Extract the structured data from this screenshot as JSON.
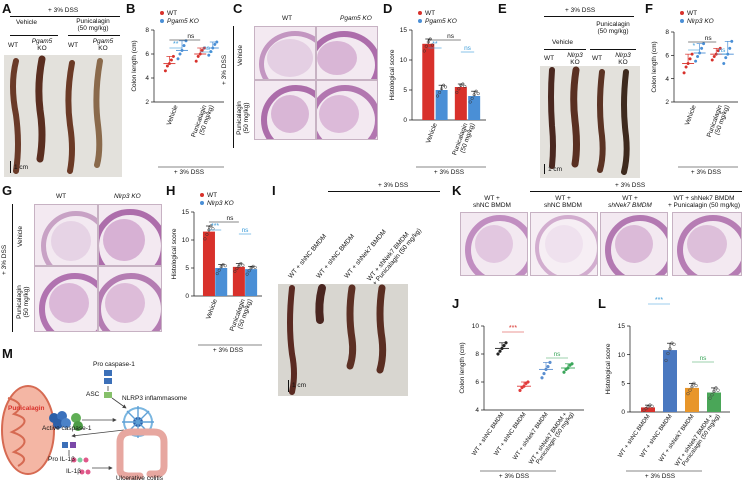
{
  "panels": {
    "A": {
      "letter": "A",
      "treatment_header": "+ 3% DSS",
      "group_vehicle": "Vehicle",
      "group_punicalagin_l1": "Punicalagin",
      "group_punicalagin_l2": "(50 mg/kg)",
      "col_wt1": "WT",
      "col_ko1_l1": "Pgam5",
      "col_ko1_l2": "KO",
      "col_wt2": "WT",
      "col_ko2_l1": "Pgam5",
      "col_ko2_l2": "KO",
      "scale": "1 cm"
    },
    "B": {
      "letter": "B",
      "legend_wt": "WT",
      "legend_ko": "Pgam5 KO",
      "sig1": "**",
      "sig2": "ns",
      "sig3": "ns",
      "xcat1": "Vehicle",
      "xcat2_l1": "Punicalagin",
      "xcat2_l2": "(50 mg/kg)",
      "footer": "+ 3% DSS"
    },
    "C": {
      "letter": "C",
      "col_wt": "WT",
      "col_ko": "Pgam5 KO",
      "side_label": "+ 3% DSS",
      "row_vehicle": "Vehicle",
      "row_punicalagin_l1": "Punicalagin",
      "row_punicalagin_l2": "(50 mg/kg)"
    },
    "D": {
      "letter": "D",
      "legend_wt": "WT",
      "legend_ko": "Pgam5 KO",
      "sig1": "**",
      "sig2": "ns",
      "sig3": "ns",
      "xcat1": "Vehicle",
      "xcat2_l1": "Punicalagin",
      "xcat2_l2": "(50 mg/kg)",
      "footer": "+ 3% DSS"
    },
    "E": {
      "letter": "E",
      "treatment_header": "+ 3% DSS",
      "group_vehicle": "Vehicle",
      "group_punicalagin_l1": "Punicalagin",
      "group_punicalagin_l2": "(50 mg/kg)",
      "col_wt1": "WT",
      "col_ko1_l1": "Nlrp3",
      "col_ko1_l2": "KO",
      "col_wt2": "WT",
      "col_ko2_l1": "Nlrp3",
      "col_ko2_l2": "KO",
      "scale": "1 cm"
    },
    "F": {
      "letter": "F",
      "legend_wt": "WT",
      "legend_ko": "Nlrp3 KO",
      "sig1": "*",
      "sig2": "ns",
      "sig3": "ns",
      "xcat1": "Vehicle",
      "xcat2_l1": "Punicalagin",
      "xcat2_l2": "(50 mg/kg)",
      "footer": "+ 3% DSS"
    },
    "G": {
      "letter": "G",
      "col_wt": "WT",
      "col_ko": "Nlrp3 KO",
      "side_label": "+ 3% DSS",
      "row_vehicle": "Vehicle",
      "row_punicalagin_l1": "Punicalagin",
      "row_punicalagin_l2": "(50 mg/kg)"
    },
    "H": {
      "letter": "H",
      "legend_wt": "WT",
      "legend_ko": "Nlrp3 KO",
      "sig1": "***",
      "sig2": "ns",
      "sig3": "ns",
      "xcat1": "Vehicle",
      "xcat2_l1": "Punicalagin",
      "xcat2_l2": "(50 mg/kg)",
      "footer": "+ 3% DSS"
    },
    "I": {
      "letter": "I",
      "treatment_header": "+ 3% DSS",
      "col1": "WT + shNC BMDM",
      "col2": "WT + shNC BMDM",
      "col3": "WT + shNek7 BMDM",
      "col4_l1": "WT + shNek7 BMDM",
      "col4_l2": "+ Punicalagin (50 mg/kg)",
      "scale": "1 cm"
    },
    "K": {
      "letter": "K",
      "treatment_header": "+ 3% DSS",
      "col1_l1": "WT +",
      "col1_l2": "shNC BMDM",
      "col2_l1": "WT +",
      "col2_l2": "shNC BMDM",
      "col3_l1": "WT +",
      "col3_l2": "shNek7 BMDM",
      "col4_l1": "WT + shNek7 BMDM",
      "col4_l2": "+ Punicalagin (50 mg/kg)"
    },
    "J": {
      "letter": "J",
      "sig1": "***",
      "sig2": "ns",
      "footer": "+ 3% DSS",
      "xcat1": "WT + shNC BMDM",
      "xcat2": "WT + shNC BMDM",
      "xcat3": "WT + shNek7 BMDM",
      "xcat4_l1": "WT + shNek7 BMDM +",
      "xcat4_l2": "Punicalagin (50 mg/kg)"
    },
    "L": {
      "letter": "L",
      "sig1": "***",
      "sig2": "ns",
      "footer": "+ 3% DSS",
      "xcat1": "WT + shNC BMDM",
      "xcat2": "WT + shNC BMDM",
      "xcat3": "WT + shNek7 BMDM",
      "xcat4_l1": "WT + shNek7 BMDM +",
      "xcat4_l2": "Punicalagin (50 mg/kg)"
    },
    "M": {
      "letter": "M",
      "punicalagin": "Punicalagin",
      "pro_caspase": "Pro caspase-1",
      "asc": "ASC",
      "nlrp3": "NLRP3 inflammasome",
      "active_caspase": "Active caspase-1",
      "pro_il": "Pro IL-1β",
      "il": "IL-1β",
      "uc": "Ulcerative colitis"
    }
  },
  "colors": {
    "wt": "#d8312b",
    "ko": "#4a8fd6",
    "ns": "#3a9bd9",
    "sig_red": "#d8312b",
    "sig_blue": "#3a9bd9",
    "bar_red": "#d8312b",
    "bar_blue": "#4a78c0",
    "bar_orange": "#e8962a",
    "bar_green": "#4aa658",
    "dot_black": "#222222",
    "dot_red": "#e23b3b",
    "dot_blue": "#5b8fd0",
    "dot_green": "#3aa65a"
  },
  "chart_data": [
    {
      "panel": "B",
      "type": "scatter",
      "ylabel": "Colon length (cm)",
      "ylim": [
        2,
        8
      ],
      "yticks": [
        "2",
        "4",
        "6",
        "8"
      ],
      "groups": [
        {
          "category": "Vehicle",
          "series": "WT",
          "mean": 5.2,
          "points": [
            4.6,
            5.0,
            5.2,
            5.5,
            5.8
          ]
        },
        {
          "category": "Vehicle",
          "series": "Pgam5 KO",
          "mean": 6.3,
          "points": [
            5.6,
            6.0,
            6.3,
            6.7,
            7.1
          ]
        },
        {
          "category": "Punicalagin (50 mg/kg)",
          "series": "WT",
          "mean": 6.0,
          "points": [
            5.4,
            5.8,
            6.0,
            6.3,
            6.5
          ]
        },
        {
          "category": "Punicalagin (50 mg/kg)",
          "series": "Pgam5 KO",
          "mean": 6.5,
          "points": [
            5.9,
            6.2,
            6.5,
            6.8,
            7.0
          ]
        }
      ]
    },
    {
      "panel": "D",
      "type": "bar",
      "ylabel": "Histological score",
      "ylim": [
        0,
        15
      ],
      "yticks": [
        "0",
        "5",
        "10",
        "15"
      ],
      "groups": [
        {
          "category": "Vehicle",
          "series": "WT",
          "mean": 12.7,
          "points": [
            11.5,
            12.3,
            13.0,
            13.5,
            12.5
          ]
        },
        {
          "category": "Vehicle",
          "series": "Pgam5 KO",
          "mean": 5.0,
          "points": [
            4.0,
            4.6,
            5.2,
            5.8,
            5.5
          ]
        },
        {
          "category": "Punicalagin (50 mg/kg)",
          "series": "WT",
          "mean": 5.5,
          "points": [
            4.6,
            5.2,
            5.8,
            6.0,
            5.6
          ]
        },
        {
          "category": "Punicalagin (50 mg/kg)",
          "series": "Pgam5 KO",
          "mean": 4.0,
          "points": [
            3.0,
            3.6,
            4.2,
            4.8,
            4.4
          ]
        }
      ]
    },
    {
      "panel": "F",
      "type": "scatter",
      "ylabel": "Colon length (cm)",
      "ylim": [
        2,
        8
      ],
      "yticks": [
        "2",
        "4",
        "6",
        "8"
      ],
      "groups": [
        {
          "category": "Vehicle",
          "series": "WT",
          "mean": 5.3,
          "points": [
            4.5,
            5.0,
            5.3,
            5.7,
            6.1
          ]
        },
        {
          "category": "Vehicle",
          "series": "Nlrp3 KO",
          "mean": 6.2,
          "points": [
            5.5,
            5.9,
            6.2,
            6.6,
            7.0
          ]
        },
        {
          "category": "Punicalagin (50 mg/kg)",
          "series": "WT",
          "mean": 6.1,
          "points": [
            5.6,
            5.9,
            6.1,
            6.4,
            6.6
          ]
        },
        {
          "category": "Punicalagin (50 mg/kg)",
          "series": "Nlrp3 KO",
          "mean": 6.1,
          "points": [
            5.3,
            5.8,
            6.1,
            6.6,
            7.2
          ]
        }
      ]
    },
    {
      "panel": "H",
      "type": "bar",
      "ylabel": "Histological score",
      "ylim": [
        0,
        15
      ],
      "yticks": [
        "0",
        "5",
        "10",
        "15"
      ],
      "groups": [
        {
          "category": "Vehicle",
          "series": "WT",
          "mean": 11.5,
          "points": [
            10.2,
            11.0,
            11.8,
            12.5,
            12.0
          ]
        },
        {
          "category": "Vehicle",
          "series": "Nlrp3 KO",
          "mean": 5.0,
          "points": [
            4.0,
            4.6,
            5.2,
            5.6,
            5.4
          ]
        },
        {
          "category": "Punicalagin (50 mg/kg)",
          "series": "WT",
          "mean": 5.2,
          "points": [
            4.4,
            4.9,
            5.3,
            5.8,
            5.5
          ]
        },
        {
          "category": "Punicalagin (50 mg/kg)",
          "series": "Nlrp3 KO",
          "mean": 4.8,
          "points": [
            3.9,
            4.5,
            5.0,
            5.3,
            5.1
          ]
        }
      ]
    },
    {
      "panel": "J",
      "type": "scatter",
      "ylabel": "Colon length (cm)",
      "ylim": [
        4,
        10
      ],
      "yticks": [
        "4",
        "6",
        "8",
        "10"
      ],
      "groups": [
        {
          "category": "WT + shNC BMDM",
          "mean": 8.4,
          "points": [
            8.0,
            8.2,
            8.4,
            8.6,
            8.8
          ],
          "color": "dot_black"
        },
        {
          "category": "WT + shNC BMDM",
          "mean": 5.7,
          "points": [
            5.4,
            5.6,
            5.7,
            5.9,
            6.0
          ],
          "color": "dot_red"
        },
        {
          "category": "WT + shNek7 BMDM",
          "mean": 6.9,
          "points": [
            6.3,
            6.6,
            6.9,
            7.1,
            7.4
          ],
          "color": "dot_blue"
        },
        {
          "category": "WT + shNek7 BMDM + Punicalagin (50 mg/kg)",
          "mean": 7.0,
          "points": [
            6.7,
            6.9,
            7.0,
            7.2,
            7.3
          ],
          "color": "dot_green"
        }
      ]
    },
    {
      "panel": "L",
      "type": "bar",
      "ylabel": "Histological score",
      "ylim": [
        0,
        15
      ],
      "yticks": [
        "0",
        "5",
        "10",
        "15"
      ],
      "groups": [
        {
          "category": "WT + shNC BMDM",
          "mean": 0.8,
          "points": [
            0.3,
            0.6,
            0.9,
            1.2,
            1.0
          ],
          "color": "bar_red"
        },
        {
          "category": "WT + shNC BMDM",
          "mean": 10.8,
          "points": [
            9.0,
            10.2,
            11.0,
            12.0,
            11.8
          ],
          "color": "bar_blue"
        },
        {
          "category": "WT + shNek7 BMDM",
          "mean": 4.2,
          "points": [
            3.2,
            3.8,
            4.4,
            5.0,
            4.6
          ],
          "color": "bar_orange"
        },
        {
          "category": "WT + shNek7 BMDM + Punicalagin (50 mg/kg)",
          "mean": 3.4,
          "points": [
            2.4,
            3.0,
            3.6,
            4.2,
            3.8
          ],
          "color": "bar_green"
        }
      ]
    }
  ]
}
